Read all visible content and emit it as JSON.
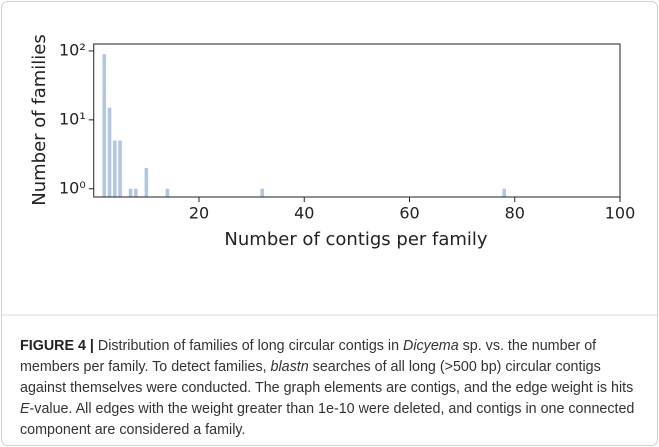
{
  "chart_data": {
    "type": "bar",
    "xlabel": "Number of contigs per family",
    "ylabel": "Number of families",
    "x": [
      2,
      3,
      4,
      5,
      7,
      8,
      10,
      14,
      32,
      78
    ],
    "values": [
      90,
      15,
      5,
      5,
      1,
      1,
      2,
      1,
      1,
      1
    ],
    "color": "#b3c6e2",
    "xlim": [
      0,
      100
    ],
    "xticks": [
      20,
      40,
      60,
      80,
      100
    ],
    "ylim": [
      0.76,
      126
    ],
    "yscale": "log",
    "yticks": [
      {
        "value": 1,
        "label": "10⁰"
      },
      {
        "value": 10,
        "label": "10¹"
      },
      {
        "value": 100,
        "label": "10²"
      }
    ]
  },
  "caption": {
    "label": "FIGURE 4 |",
    "parts": [
      " Distribution of families of long circular contigs in ",
      "Dicyema",
      " sp. vs. the number of members per family. To detect families, ",
      "blastn",
      " searches of all long (>500 bp) circular contigs against themselves were conducted. The graph elements are contigs, and the edge weight is hits ",
      "E",
      "-value. All edges with the weight greater than 1e-10 were deleted, and contigs in one connected component are considered a family."
    ]
  }
}
